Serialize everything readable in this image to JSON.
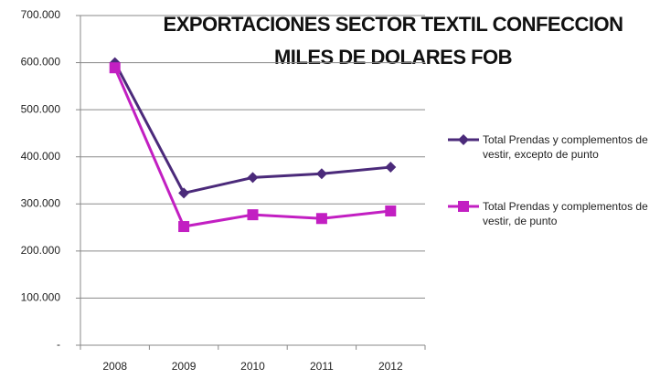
{
  "chart_data": {
    "type": "line",
    "title": "EXPORTACIONES SECTOR TEXTIL CONFECCION",
    "subtitle": "MILES DE DOLARES FOB",
    "categories": [
      "2008",
      "2009",
      "2010",
      "2011",
      "2012"
    ],
    "series": [
      {
        "name": "Total Prendas y complementos de vestir, excepto de punto",
        "color": "#4b2a7a",
        "marker": "diamond",
        "values": [
          600000,
          323000,
          356000,
          364000,
          378000
        ]
      },
      {
        "name": "Total Prendas y complementos de vestir, de punto",
        "color": "#c21fc2",
        "marker": "square",
        "values": [
          589000,
          252000,
          277000,
          269000,
          285000
        ]
      }
    ],
    "ylim": [
      0,
      700000
    ],
    "yticks": [
      {
        "value": 0,
        "label": "-"
      },
      {
        "value": 100000,
        "label": "100.000"
      },
      {
        "value": 200000,
        "label": "200.000"
      },
      {
        "value": 300000,
        "label": "300.000"
      },
      {
        "value": 400000,
        "label": "400.000"
      },
      {
        "value": 500000,
        "label": "500.000"
      },
      {
        "value": 600000,
        "label": "600.000"
      },
      {
        "value": 700000,
        "label": "700.000"
      }
    ],
    "grid": true,
    "legend": "right"
  }
}
